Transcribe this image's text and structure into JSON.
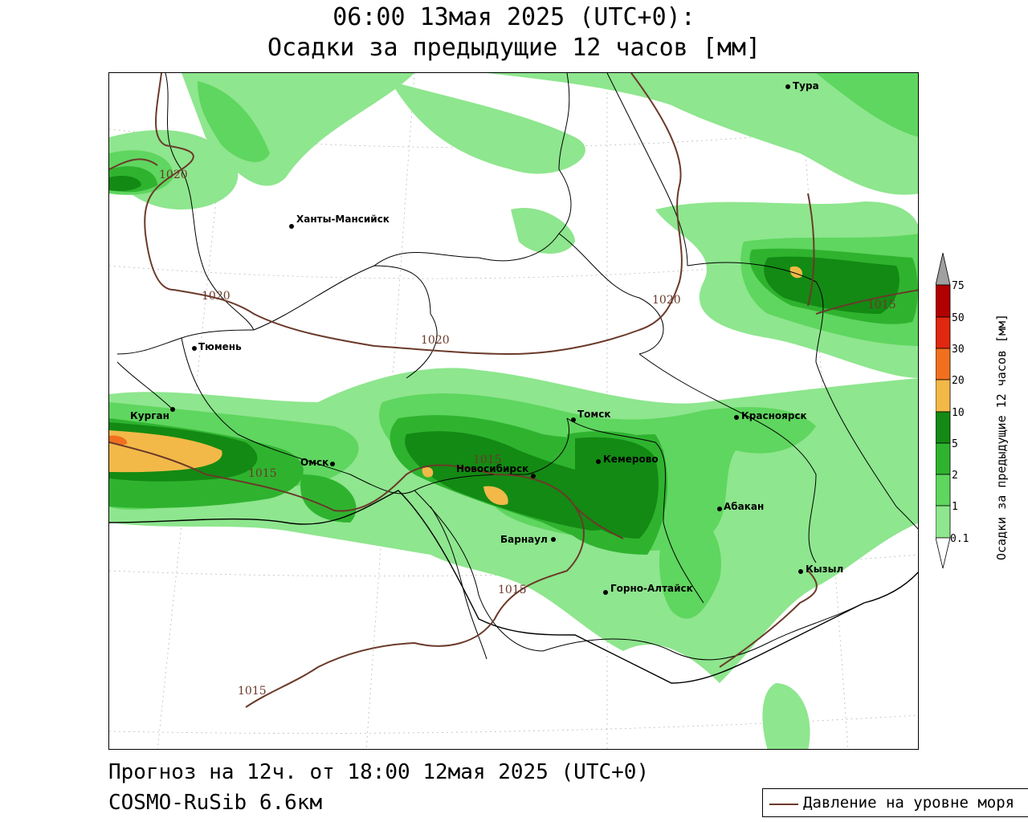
{
  "title": {
    "line1": "06:00 13мая 2025 (UTC+0):",
    "line2": "Осадки за предыдущие 12 часов [мм]"
  },
  "map": {
    "cities": [
      {
        "name": "Тура",
        "id": "tura"
      },
      {
        "name": "Ханты-Мансийск",
        "id": "khanty-mansiysk"
      },
      {
        "name": "Тюмень",
        "id": "tyumen"
      },
      {
        "name": "Курган",
        "id": "kurgan"
      },
      {
        "name": "Омск",
        "id": "omsk"
      },
      {
        "name": "Новосибирск",
        "id": "novosibirsk"
      },
      {
        "name": "Томск",
        "id": "tomsk"
      },
      {
        "name": "Кемерово",
        "id": "kemerovo"
      },
      {
        "name": "Красноярск",
        "id": "krasnoyarsk"
      },
      {
        "name": "Абакан",
        "id": "abakan"
      },
      {
        "name": "Барнаул",
        "id": "barnaul"
      },
      {
        "name": "Горно-Алтайск",
        "id": "gorno-altaysk"
      },
      {
        "name": "Кызыл",
        "id": "kyzyl"
      }
    ],
    "isobar_labels": [
      "1020",
      "1020",
      "1020",
      "1020",
      "1015",
      "1015",
      "1015",
      "1015",
      "1015"
    ],
    "colors": {
      "p0_1": "#8ee68e",
      "p1": "#5fd65f",
      "p2": "#2fb32f",
      "p5": "#138a13",
      "p10": "#f2b948",
      "p20": "#f07020",
      "p30": "#e02810",
      "p50": "#b00000",
      "p75": "#a0a0a0",
      "isobar": "#6b3a2a"
    }
  },
  "legend": {
    "title": "Осадки за предыдущие 12 часов [мм]",
    "levels": [
      "75",
      "50",
      "30",
      "20",
      "10",
      "5",
      "2",
      "1",
      "0.1"
    ]
  },
  "footer": {
    "forecast": "Прогноз на 12ч. от 18:00 12мая 2025 (UTC+0)",
    "model": "COSMO-RuSib 6.6км",
    "pressure_legend": "Давление на уровне моря"
  }
}
